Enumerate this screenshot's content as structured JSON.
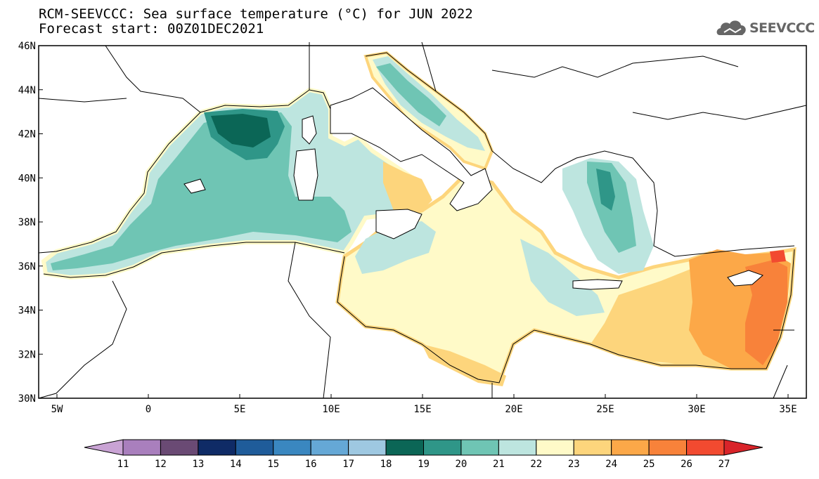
{
  "header": {
    "title_line1": "RCM-SEEVCCC: Sea surface temperature (°C) for JUN 2022",
    "title_line2": "Forecast start: 00Z01DEC2021",
    "logo_text": "SEEVCCC"
  },
  "map": {
    "lon_range": [
      -6,
      36
    ],
    "lat_range": [
      30,
      46
    ],
    "lon_ticks": [
      {
        "value": -5,
        "label": "5W"
      },
      {
        "value": 0,
        "label": "0"
      },
      {
        "value": 5,
        "label": "5E"
      },
      {
        "value": 10,
        "label": "10E"
      },
      {
        "value": 15,
        "label": "15E"
      },
      {
        "value": 20,
        "label": "20E"
      },
      {
        "value": 25,
        "label": "25E"
      },
      {
        "value": 30,
        "label": "30E"
      },
      {
        "value": 35,
        "label": "35E"
      }
    ],
    "lat_ticks": [
      {
        "value": 30,
        "label": "30N"
      },
      {
        "value": 32,
        "label": "32N"
      },
      {
        "value": 34,
        "label": "34N"
      },
      {
        "value": 36,
        "label": "36N"
      },
      {
        "value": 38,
        "label": "38N"
      },
      {
        "value": 40,
        "label": "40N"
      },
      {
        "value": 42,
        "label": "42N"
      },
      {
        "value": 44,
        "label": "44N"
      },
      {
        "value": 46,
        "label": "46N"
      }
    ]
  },
  "colorbar": {
    "labels": [
      "11",
      "12",
      "13",
      "14",
      "15",
      "16",
      "17",
      "18",
      "19",
      "20",
      "21",
      "22",
      "23",
      "24",
      "25",
      "26",
      "27"
    ],
    "colors": [
      "#c9a3d4",
      "#a97fbd",
      "#6a4a74",
      "#0f2b66",
      "#1f5c9a",
      "#3a87c0",
      "#65a8d6",
      "#9ec8e1",
      "#0b6656",
      "#2f9688",
      "#6fc5b4",
      "#bde5df",
      "#fffac8",
      "#fdd57c",
      "#fca848",
      "#f8823a",
      "#f24a30",
      "#d9242a"
    ]
  },
  "legend_sst": {
    "color_21": "#bde5df",
    "color_22": "#fffac8",
    "color_20": "#6fc5b4",
    "color_19": "#2f9688",
    "color_18": "#0b6656",
    "color_23": "#fdd57c",
    "color_24": "#fca848",
    "color_25": "#f8823a"
  }
}
